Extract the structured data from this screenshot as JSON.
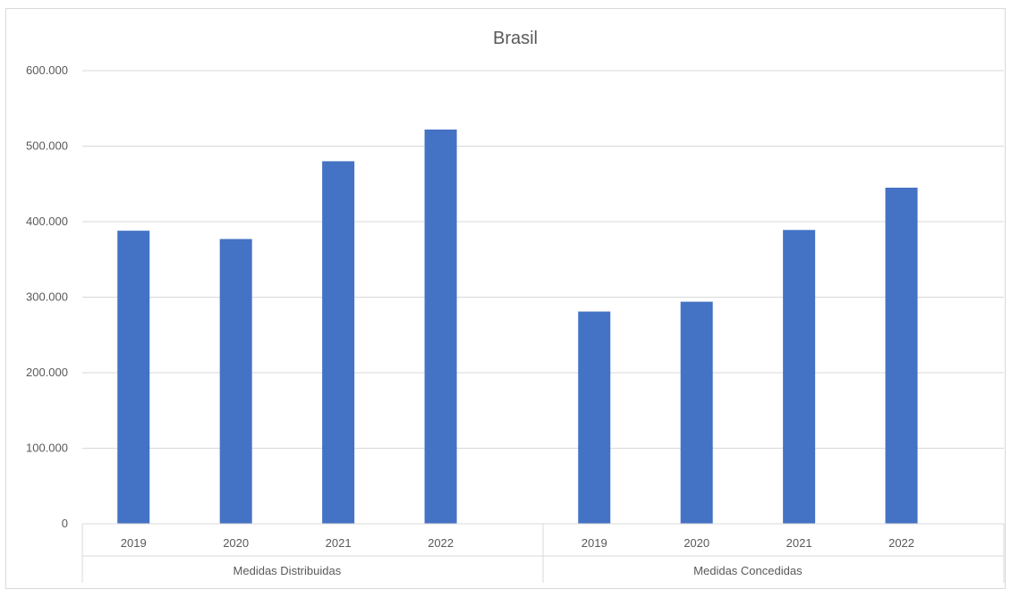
{
  "chart_data": {
    "type": "bar",
    "title": "Brasil",
    "xlabel": "",
    "ylabel": "",
    "ylim": [
      0,
      600000
    ],
    "y_ticks": [
      0,
      100000,
      200000,
      300000,
      400000,
      500000,
      600000
    ],
    "y_tick_labels": [
      "0",
      "100.000",
      "200.000",
      "300.000",
      "400.000",
      "500.000",
      "600.000"
    ],
    "grid": true,
    "legend": "none",
    "bar_color": "#4472c4",
    "groups": [
      {
        "label": "Medidas Distribuidas",
        "categories": [
          "2019",
          "2020",
          "2021",
          "2022"
        ],
        "values": [
          388000,
          377000,
          480000,
          522000
        ]
      },
      {
        "label": "Medidas Concedidas",
        "categories": [
          "2019",
          "2020",
          "2021",
          "2022"
        ],
        "values": [
          281000,
          294000,
          389000,
          445000
        ]
      }
    ]
  }
}
